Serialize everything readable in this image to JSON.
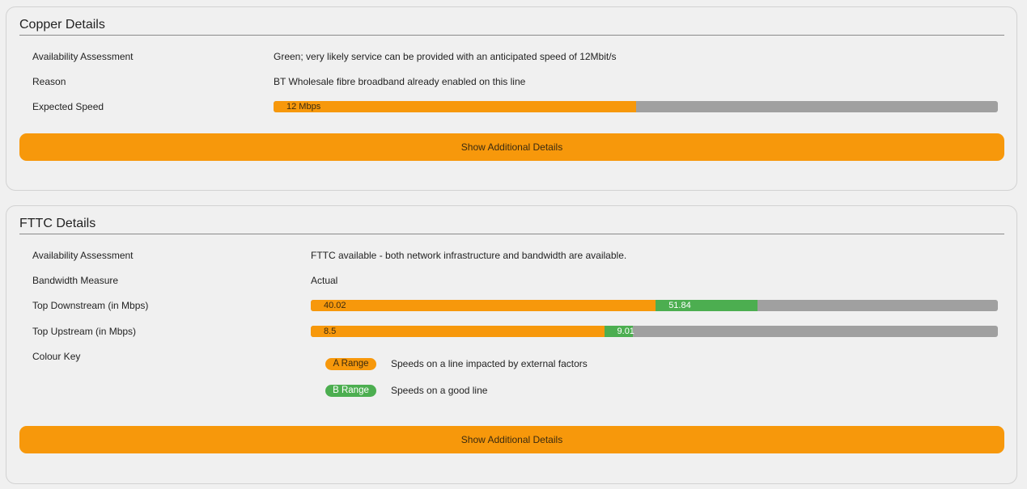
{
  "copper": {
    "title": "Copper Details",
    "availability": {
      "label": "Availability Assessment",
      "value": "Green; very likely service can be provided with an anticipated speed of 12Mbit/s"
    },
    "reason": {
      "label": "Reason",
      "value": "BT Wholesale fibre broadband already enabled on this line"
    },
    "expected_speed": {
      "label": "Expected Speed",
      "bar_text": "12 Mbps",
      "fill_fraction": 0.5
    },
    "button_label": "Show Additional Details"
  },
  "fttc": {
    "title": "FTTC Details",
    "availability": {
      "label": "Availability Assessment",
      "value": "FTTC available - both network infrastructure and bandwidth are available."
    },
    "bandwidth_measure": {
      "label": "Bandwidth Measure",
      "value": "Actual"
    },
    "downstream": {
      "label": "Top Downstream (in Mbps)",
      "a_value": "40.02",
      "b_value": "51.84",
      "a_fraction": 0.502,
      "b_fraction": 0.65
    },
    "upstream": {
      "label": "Top Upstream (in Mbps)",
      "a_value": "8.5",
      "b_value": "9.01",
      "a_fraction": 0.427,
      "b_fraction": 0.469
    },
    "colour_key": {
      "label": "Colour Key",
      "a_range": {
        "name": "A Range",
        "desc": "Speeds on a line impacted by external factors",
        "color": "#f7980b"
      },
      "b_range": {
        "name": "B Range",
        "desc": "Speeds on a good line",
        "color": "#4cae50"
      }
    },
    "button_label": "Show Additional Details"
  },
  "colors": {
    "orange": "#f7980b",
    "green": "#4cae50",
    "track": "#a0a0a0"
  }
}
